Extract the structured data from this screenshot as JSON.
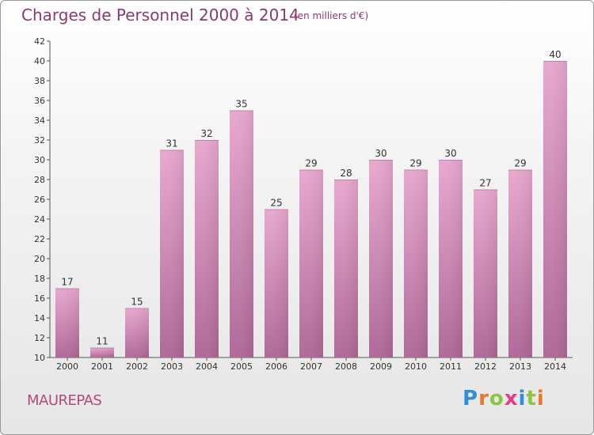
{
  "chart_data": {
    "type": "bar",
    "title": "Charges de Personnel 2000 à 2014",
    "subtitle": "(en milliers d'€)",
    "categories": [
      "2000",
      "2001",
      "2002",
      "2003",
      "2004",
      "2005",
      "2006",
      "2007",
      "2008",
      "2009",
      "2010",
      "2011",
      "2012",
      "2013",
      "2014"
    ],
    "values": [
      17,
      11,
      15,
      31,
      32,
      35,
      25,
      29,
      28,
      30,
      29,
      30,
      27,
      29,
      40
    ],
    "ylim": [
      10,
      42
    ],
    "yticks": [
      10,
      12,
      14,
      16,
      18,
      20,
      22,
      24,
      26,
      28,
      30,
      32,
      34,
      36,
      38,
      40,
      42
    ],
    "grid": false,
    "colors": {
      "bar_top": "#e8a9cf",
      "bar_bottom": "#b06a98",
      "text": "#8a3a6e"
    }
  },
  "footer": {
    "city": "MAUREPAS",
    "logo_text": [
      "P",
      "r",
      "o",
      "x",
      "i",
      "t",
      "i"
    ],
    "logo_colors": [
      "#2f8fd6",
      "#e8792b",
      "#8cc63f",
      "#e23b8c",
      "#2f8fd6",
      "#8cc63f",
      "#e8792b"
    ]
  }
}
